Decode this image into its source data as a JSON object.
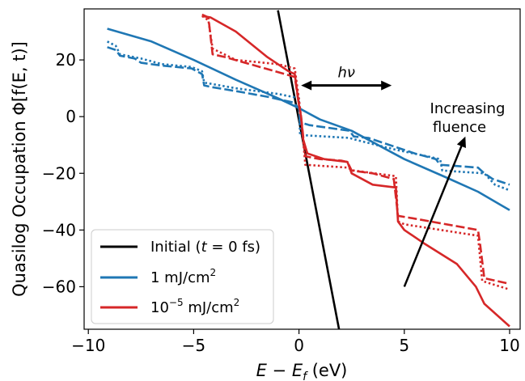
{
  "chart_data": {
    "type": "line",
    "xlabel": "E − E_f (eV)",
    "xlabel_parts": {
      "main": "E − E",
      "sub": "f",
      "unit": " (eV)"
    },
    "ylabel": "Quasilog Occupation Φ[f(E, t)]",
    "xlim": [
      -10.2,
      10.5
    ],
    "ylim": [
      -75,
      38
    ],
    "xticks": [
      -10,
      -5,
      0,
      5,
      10
    ],
    "yticks": [
      20,
      0,
      -20,
      -40,
      -60
    ],
    "xtick_labels": [
      "−10",
      "−5",
      "0",
      "5",
      "10"
    ],
    "ytick_labels": [
      "20",
      "0",
      "−20",
      "−40",
      "−60"
    ],
    "grid": false,
    "legend_position": "lower-left",
    "legend": [
      {
        "label": "Initial (t = 0 fs)",
        "parts": [
          "Initial (",
          "t",
          " = 0 fs)"
        ],
        "color": "#000000"
      },
      {
        "label": "1 mJ/cm²",
        "parts": [
          "1 mJ/cm",
          "2",
          ""
        ],
        "color": "#1f77b4"
      },
      {
        "label": "10⁻⁵ mJ/cm²",
        "parts": [
          "10",
          "−5",
          " mJ/cm",
          "2"
        ],
        "color": "#d62728"
      }
    ],
    "annotations": {
      "hnu": "hν",
      "increasing": "Increasing",
      "fluence": "fluence",
      "hnu_arrow": {
        "x0": 0.1,
        "x1": 4.4,
        "y": 11
      },
      "fluence_arrow": {
        "x0": 5.0,
        "y0": -60,
        "x1": 7.9,
        "y1": -7
      }
    },
    "series": [
      {
        "color": "#000000",
        "dash": "solid",
        "points": [
          [
            -1.0,
            37.5
          ],
          [
            1.9,
            -75
          ]
        ]
      },
      {
        "color": "#1f77b4",
        "dash": "solid",
        "points": [
          [
            -9.1,
            31
          ],
          [
            -7,
            26.5
          ],
          [
            -5,
            20
          ],
          [
            -3,
            13
          ],
          [
            -1,
            6.5
          ],
          [
            0,
            3
          ],
          [
            1,
            -1
          ],
          [
            2.5,
            -5
          ],
          [
            4,
            -11
          ],
          [
            5,
            -15
          ],
          [
            7,
            -21.5
          ],
          [
            8.5,
            -26.5
          ],
          [
            10,
            -33
          ]
        ]
      },
      {
        "color": "#1f77b4",
        "dash": "dashed",
        "points": [
          [
            -9.1,
            24.5
          ],
          [
            -8.7,
            23.5
          ],
          [
            -8.5,
            21.5
          ],
          [
            -7.8,
            20.5
          ],
          [
            -7.5,
            19
          ],
          [
            -6.5,
            18
          ],
          [
            -5.1,
            17
          ],
          [
            -4.6,
            15
          ],
          [
            -4.5,
            11
          ],
          [
            -4.2,
            10.5
          ],
          [
            -3,
            9
          ],
          [
            -1.5,
            7
          ],
          [
            -0.3,
            5
          ],
          [
            0,
            3
          ],
          [
            0.05,
            -2
          ],
          [
            0.5,
            -3
          ],
          [
            2.4,
            -5
          ],
          [
            2.6,
            -7
          ],
          [
            3.3,
            -7.5
          ],
          [
            4.5,
            -10.5
          ],
          [
            5.5,
            -13
          ],
          [
            6.5,
            -15
          ],
          [
            6.7,
            -17
          ],
          [
            8.5,
            -18
          ],
          [
            8.8,
            -20
          ],
          [
            9.2,
            -22
          ],
          [
            10,
            -24
          ]
        ]
      },
      {
        "color": "#1f77b4",
        "dash": "dotted",
        "points": [
          [
            -9.1,
            26.5
          ],
          [
            -8.7,
            25
          ],
          [
            -8.5,
            22
          ],
          [
            -7.5,
            20.5
          ],
          [
            -6.5,
            18.5
          ],
          [
            -5.1,
            17.5
          ],
          [
            -4.6,
            16
          ],
          [
            -4.5,
            12
          ],
          [
            -3,
            10
          ],
          [
            -1,
            8
          ],
          [
            0,
            6.5
          ],
          [
            0.05,
            -6.5
          ],
          [
            2.4,
            -7.5
          ],
          [
            2.6,
            -8
          ],
          [
            4.5,
            -11.5
          ],
          [
            6.7,
            -15
          ],
          [
            6.8,
            -19
          ],
          [
            8.8,
            -20
          ],
          [
            9.3,
            -24
          ],
          [
            10,
            -26
          ]
        ]
      },
      {
        "color": "#d62728",
        "dash": "solid",
        "points": [
          [
            -4.6,
            35.5
          ],
          [
            -4.2,
            35
          ],
          [
            -3,
            30
          ],
          [
            -1.5,
            21
          ],
          [
            -0.5,
            16
          ],
          [
            -0.2,
            15
          ],
          [
            0,
            4
          ],
          [
            0.1,
            0
          ],
          [
            0.2,
            -8
          ],
          [
            0.4,
            -13
          ],
          [
            1.2,
            -15
          ],
          [
            2.3,
            -16
          ],
          [
            2.5,
            -20
          ],
          [
            3.5,
            -24
          ],
          [
            4.6,
            -25
          ],
          [
            4.7,
            -37
          ],
          [
            5,
            -40
          ],
          [
            6,
            -45
          ],
          [
            7.5,
            -52
          ],
          [
            8.4,
            -60
          ],
          [
            8.6,
            -63
          ],
          [
            8.8,
            -66
          ],
          [
            10,
            -74
          ]
        ]
      },
      {
        "color": "#d62728",
        "dash": "dashed",
        "points": [
          [
            -4.6,
            36
          ],
          [
            -4.3,
            35
          ],
          [
            -4.1,
            22
          ],
          [
            -3.5,
            21
          ],
          [
            -0.2,
            14
          ],
          [
            0,
            4
          ],
          [
            0.1,
            0
          ],
          [
            0.3,
            -14
          ],
          [
            1,
            -15
          ],
          [
            2,
            -15.5
          ],
          [
            2.3,
            -16
          ],
          [
            2.5,
            -19
          ],
          [
            3.5,
            -20
          ],
          [
            4.5,
            -22
          ],
          [
            4.7,
            -35
          ],
          [
            5.5,
            -36
          ],
          [
            8.5,
            -40
          ],
          [
            8.6,
            -45
          ],
          [
            8.8,
            -57
          ],
          [
            10,
            -59
          ]
        ]
      },
      {
        "color": "#d62728",
        "dash": "dotted",
        "points": [
          [
            -4.6,
            35.5
          ],
          [
            -4.3,
            34
          ],
          [
            -4.1,
            24
          ],
          [
            -3,
            20
          ],
          [
            -1,
            18.5
          ],
          [
            -0.2,
            17
          ],
          [
            0,
            6
          ],
          [
            0.1,
            0
          ],
          [
            0.3,
            -17
          ],
          [
            2.3,
            -18
          ],
          [
            2.6,
            -19
          ],
          [
            4.6,
            -21
          ],
          [
            4.7,
            -37
          ],
          [
            5,
            -38
          ],
          [
            8.5,
            -42
          ],
          [
            8.7,
            -58
          ],
          [
            10,
            -61
          ]
        ]
      }
    ]
  }
}
